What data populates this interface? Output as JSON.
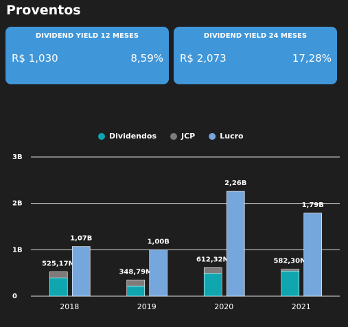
{
  "header": {
    "title": "Proventos"
  },
  "cards": [
    {
      "title": "DIVIDEND YIELD 12 MESES",
      "amount": "R$ 1,030",
      "percent": "8,59%"
    },
    {
      "title": "DIVIDEND YIELD 24 MESES",
      "amount": "R$ 2,073",
      "percent": "17,28%"
    }
  ],
  "chart_data": {
    "type": "grouped-stacked-bar",
    "categories": [
      "2018",
      "2019",
      "2020",
      "2021"
    ],
    "series": [
      {
        "name": "Dividendos",
        "color": "#0fa6b0",
        "stack": "proventos",
        "values": [
          395170000,
          218790000,
          492320000,
          542300000
        ]
      },
      {
        "name": "JCP",
        "color": "#807a7a",
        "stack": "proventos",
        "values": [
          130000000,
          130000000,
          120000000,
          40000000
        ]
      },
      {
        "name": "Lucro",
        "color": "#76a7dc",
        "stack": "lucro",
        "values": [
          1070000000,
          1000000000,
          2260000000,
          1790000000
        ],
        "value_labels": [
          "1,07B",
          "1,00B",
          "2,26B",
          "1,79B"
        ]
      }
    ],
    "total_labels": [
      {
        "value": 525170000,
        "label": "525,17M"
      },
      {
        "value": 348790000,
        "label": "348,79M"
      },
      {
        "value": 612320000,
        "label": "612,32M"
      },
      {
        "value": 582300000,
        "label": "582,30M"
      }
    ],
    "ylim": [
      0,
      3000000000
    ],
    "yticks": [
      0,
      {
        "value": 1000000000,
        "label": "1B"
      },
      {
        "value": 2000000000,
        "label": "2B"
      },
      {
        "value": 3000000000,
        "label": "3B"
      }
    ],
    "grid": true
  }
}
